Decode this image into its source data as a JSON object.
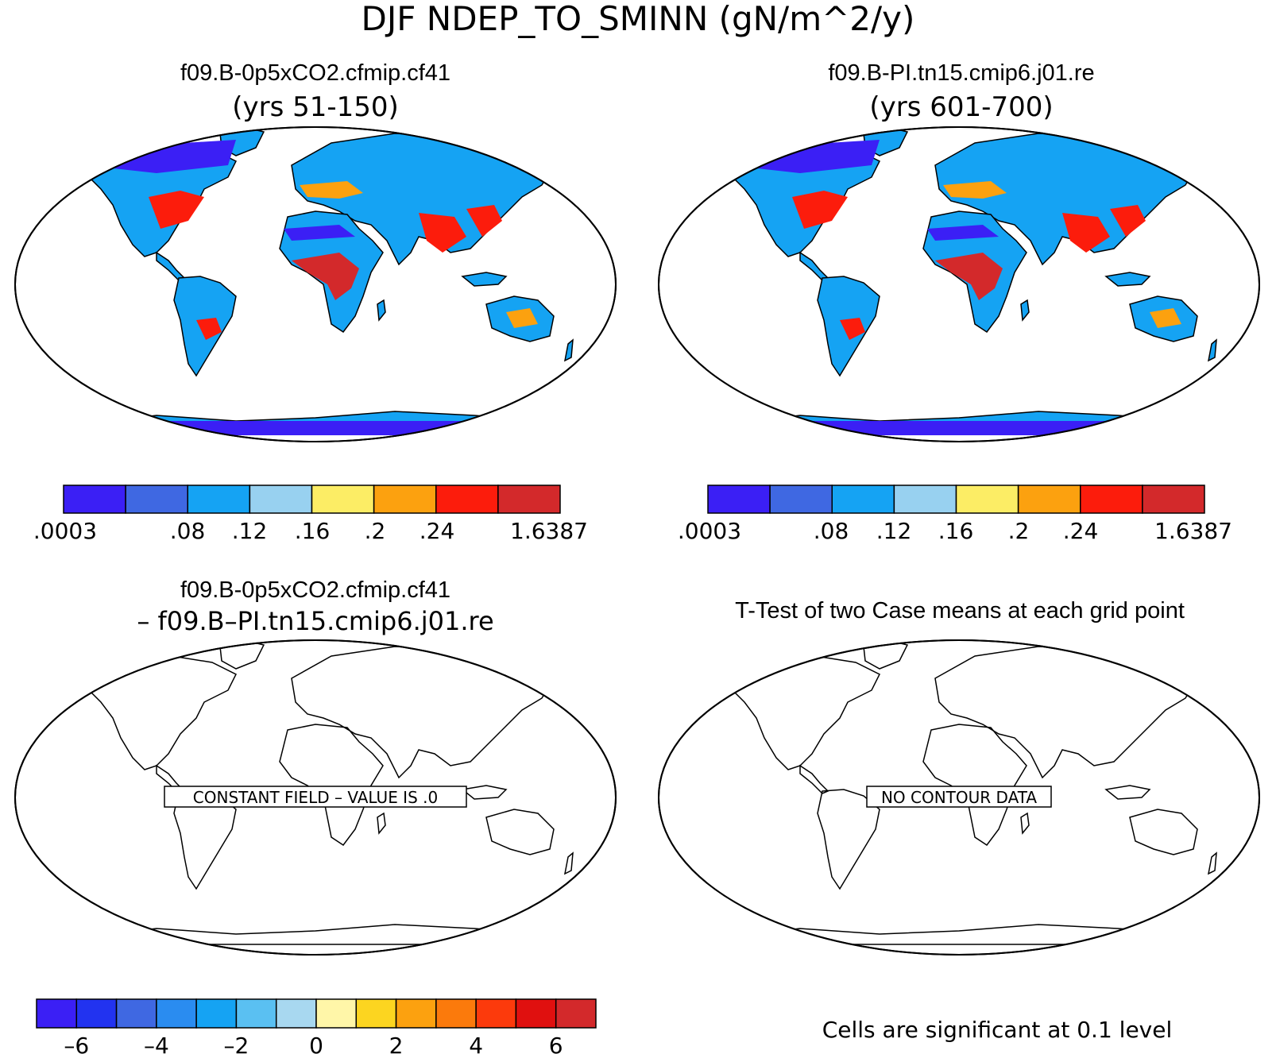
{
  "main_title": "DJF NDEP_TO_SMINN (gN/m^2/y)",
  "panels": [
    {
      "title": "f09.B-0p5xCO2.cfmip.cf41",
      "subtitle": "(yrs 51-150)",
      "colorbar": {
        "colors": [
          "#3b1ff5",
          "#3f68e2",
          "#15a3f3",
          "#98d1f0",
          "#fced65",
          "#fca10f",
          "#fc1c0c",
          "#d3292b"
        ],
        "labels": [
          ".0003",
          ".08",
          ".12",
          ".16",
          ".2",
          ".24",
          "1.6387"
        ]
      }
    },
    {
      "title": "f09.B-PI.tn15.cmip6.j01.re",
      "subtitle": "(yrs 601-700)",
      "colorbar": {
        "colors": [
          "#3b1ff5",
          "#3f68e2",
          "#15a3f3",
          "#98d1f0",
          "#fced65",
          "#fca10f",
          "#fc1c0c",
          "#d3292b"
        ],
        "labels": [
          ".0003",
          ".08",
          ".12",
          ".16",
          ".2",
          ".24",
          "1.6387"
        ]
      }
    },
    {
      "title": "f09.B-0p5xCO2.cfmip.cf41",
      "subtitle": "– f09.B–PI.tn15.cmip6.j01.re",
      "note": "CONSTANT FIELD – VALUE IS .0",
      "colorbar": {
        "colors": [
          "#3b1ff5",
          "#2233f0",
          "#3f68e2",
          "#2a8cf0",
          "#15a3f3",
          "#5ac0f2",
          "#a8d8f0",
          "#fff6a8",
          "#fcd520",
          "#fca10f",
          "#fb7a0c",
          "#fc3a0c",
          "#e0100f",
          "#d3292b"
        ],
        "labels": [
          "–6",
          "–4",
          "–2",
          "0",
          "2",
          "4",
          "6"
        ]
      }
    },
    {
      "title": "T-Test of two Case means at each grid point",
      "note": "NO CONTOUR DATA",
      "footer": "Cells are significant at 0.1 level"
    }
  ]
}
